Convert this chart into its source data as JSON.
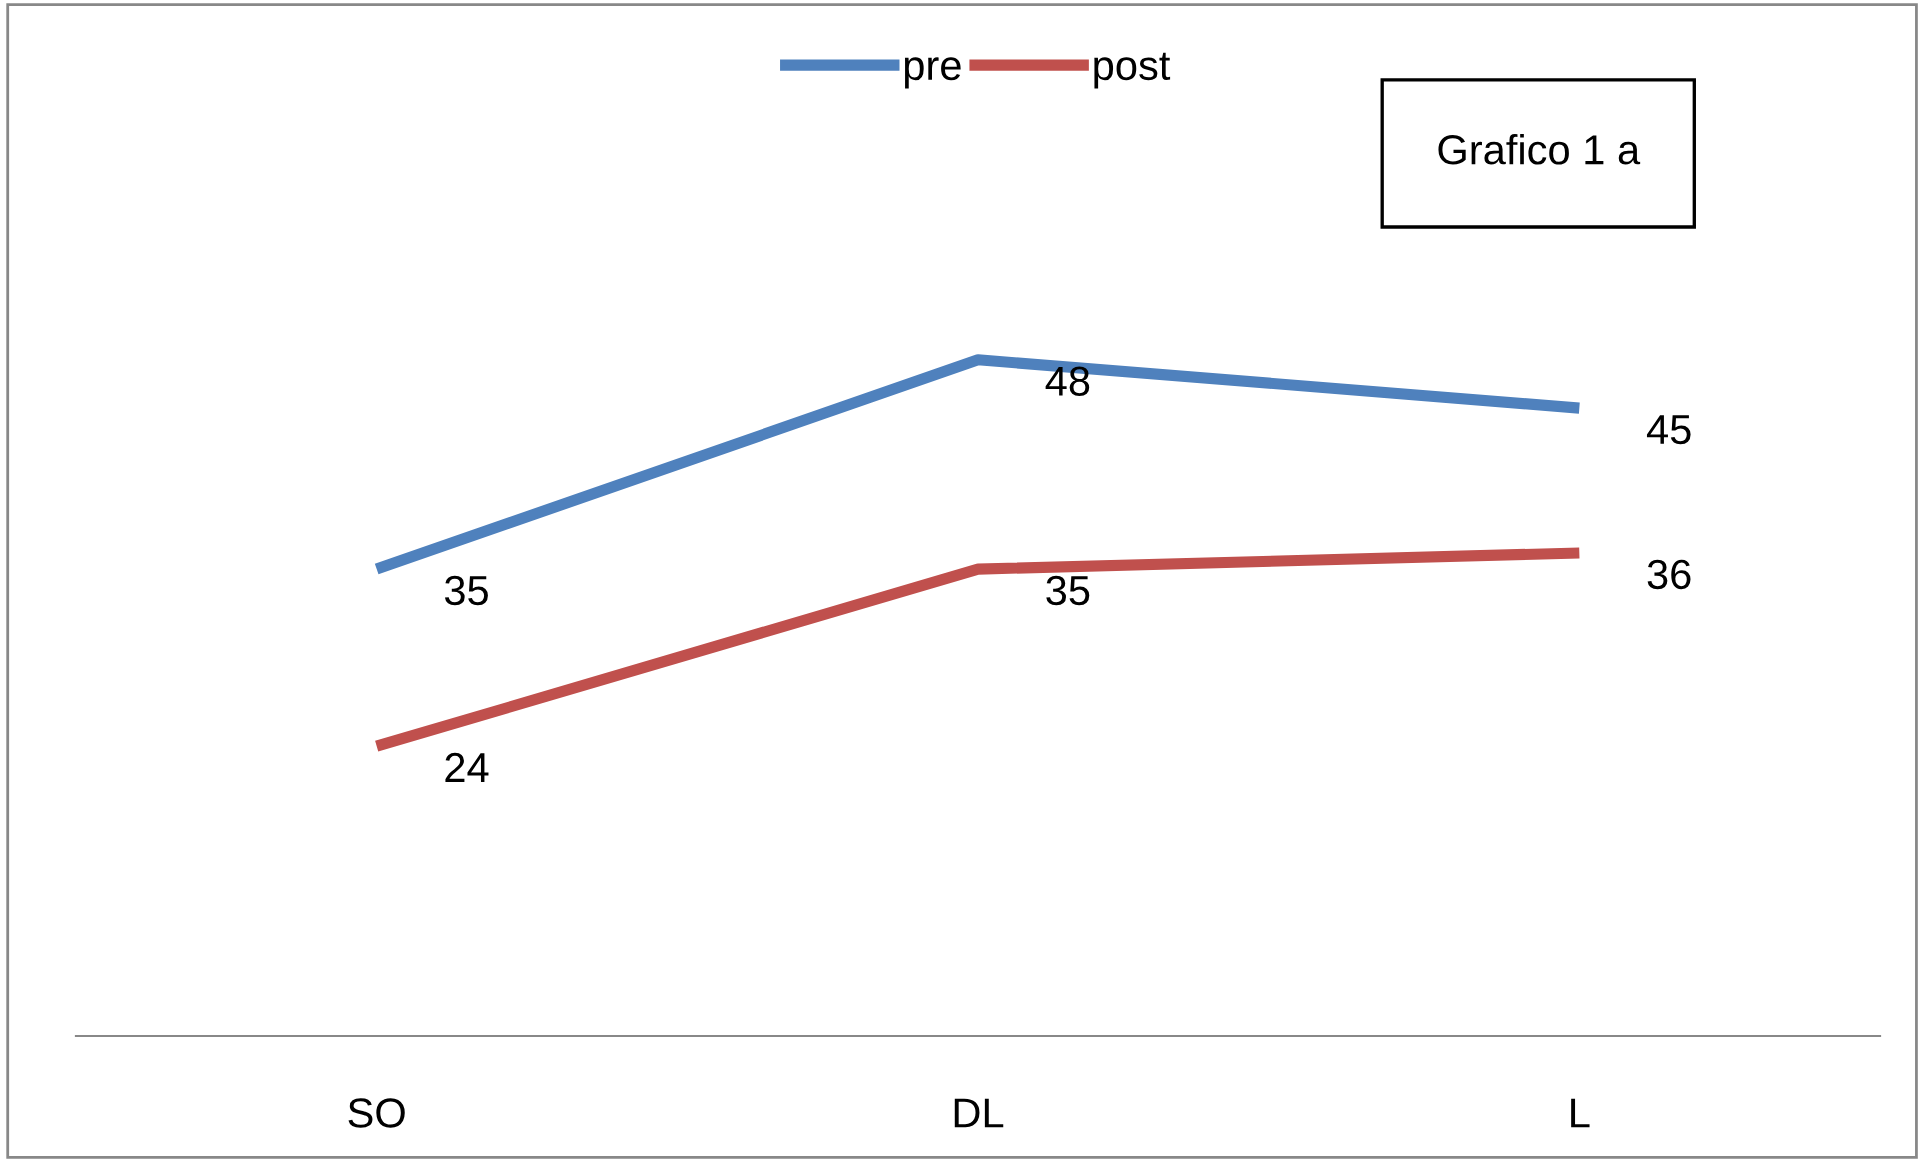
{
  "chart_data": {
    "type": "line",
    "categories": [
      "SO",
      "DL",
      "L"
    ],
    "series": [
      {
        "name": "pre",
        "color": "#4f81bd",
        "values": [
          35,
          48,
          45
        ]
      },
      {
        "name": "post",
        "color": "#c0504d",
        "values": [
          24,
          35,
          36
        ]
      }
    ],
    "data_labels": true,
    "legend": "top",
    "tick_labels": "x",
    "grid": false,
    "marker": "none",
    "line_style": "solid",
    "annotations": [
      "Grafico 1 a"
    ]
  }
}
